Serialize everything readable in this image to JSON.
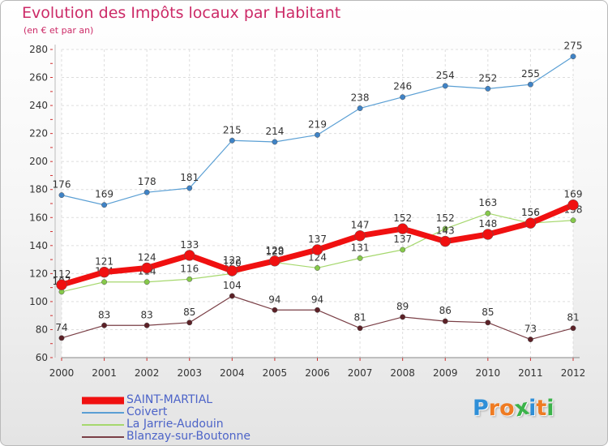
{
  "title": "Evolution des Impôts locaux par Habitant",
  "subtitle": "(en € et par an)",
  "logo": {
    "letters": [
      "P",
      "r",
      "o",
      "x",
      "i",
      "t",
      "i"
    ],
    "colors": [
      "#2f8fd8",
      "#ef7b22",
      "#ef7b22",
      "#3bb34a",
      "#2f8fd8",
      "#ef7b22",
      "#3bb34a"
    ]
  },
  "chart_data": {
    "type": "line",
    "title": "Evolution des Impôts locaux par Habitant",
    "subtitle": "(en € et par an)",
    "x": [
      "2000",
      "2001",
      "2002",
      "2003",
      "2004",
      "2005",
      "2006",
      "2007",
      "2008",
      "2009",
      "2010",
      "2011",
      "2012"
    ],
    "ylim": [
      60,
      280
    ],
    "yticks": [
      "60",
      "80",
      "100",
      "120",
      "140",
      "160",
      "180",
      "200",
      "220",
      "240",
      "260",
      "280"
    ],
    "grid": true,
    "legend": "bottom-left",
    "series": [
      {
        "name": "Coivert",
        "color": "#5a9fd4",
        "marker": "#3f83c6",
        "width": 1.2,
        "markerSize": 3.2,
        "values": [
          176,
          169,
          178,
          181,
          215,
          214,
          219,
          238,
          246,
          254,
          252,
          255,
          275
        ]
      },
      {
        "name": "La Jarrie-Audouin",
        "color": "#a6d86e",
        "marker": "#86c94a",
        "width": 1.2,
        "markerSize": 3.2,
        "values": [
          107,
          114,
          114,
          116,
          120,
          128,
          124,
          131,
          137,
          152,
          163,
          156,
          158
        ]
      },
      {
        "name": "Blanzay-sur-Boutonne",
        "color": "#7a3f46",
        "marker": "#5c2127",
        "width": 1.2,
        "markerSize": 3.2,
        "values": [
          74,
          83,
          83,
          85,
          104,
          94,
          94,
          81,
          89,
          86,
          85,
          73,
          81
        ]
      },
      {
        "name": "SAINT-MARTIAL",
        "color": "#f01010",
        "marker": "#f01010",
        "width": 7,
        "markerSize": 6.5,
        "values": [
          112,
          121,
          124,
          133,
          122,
          129,
          137,
          147,
          152,
          143,
          148,
          156,
          169
        ]
      }
    ]
  },
  "legend": [
    {
      "name": "SAINT-MARTIAL",
      "color": "#f01010",
      "thickness": 9
    },
    {
      "name": "Coivert",
      "color": "#5a9fd4",
      "thickness": 2
    },
    {
      "name": "La Jarrie-Audouin",
      "color": "#a6d86e",
      "thickness": 2
    },
    {
      "name": "Blanzay-sur-Boutonne",
      "color": "#7a3f46",
      "thickness": 2
    }
  ]
}
